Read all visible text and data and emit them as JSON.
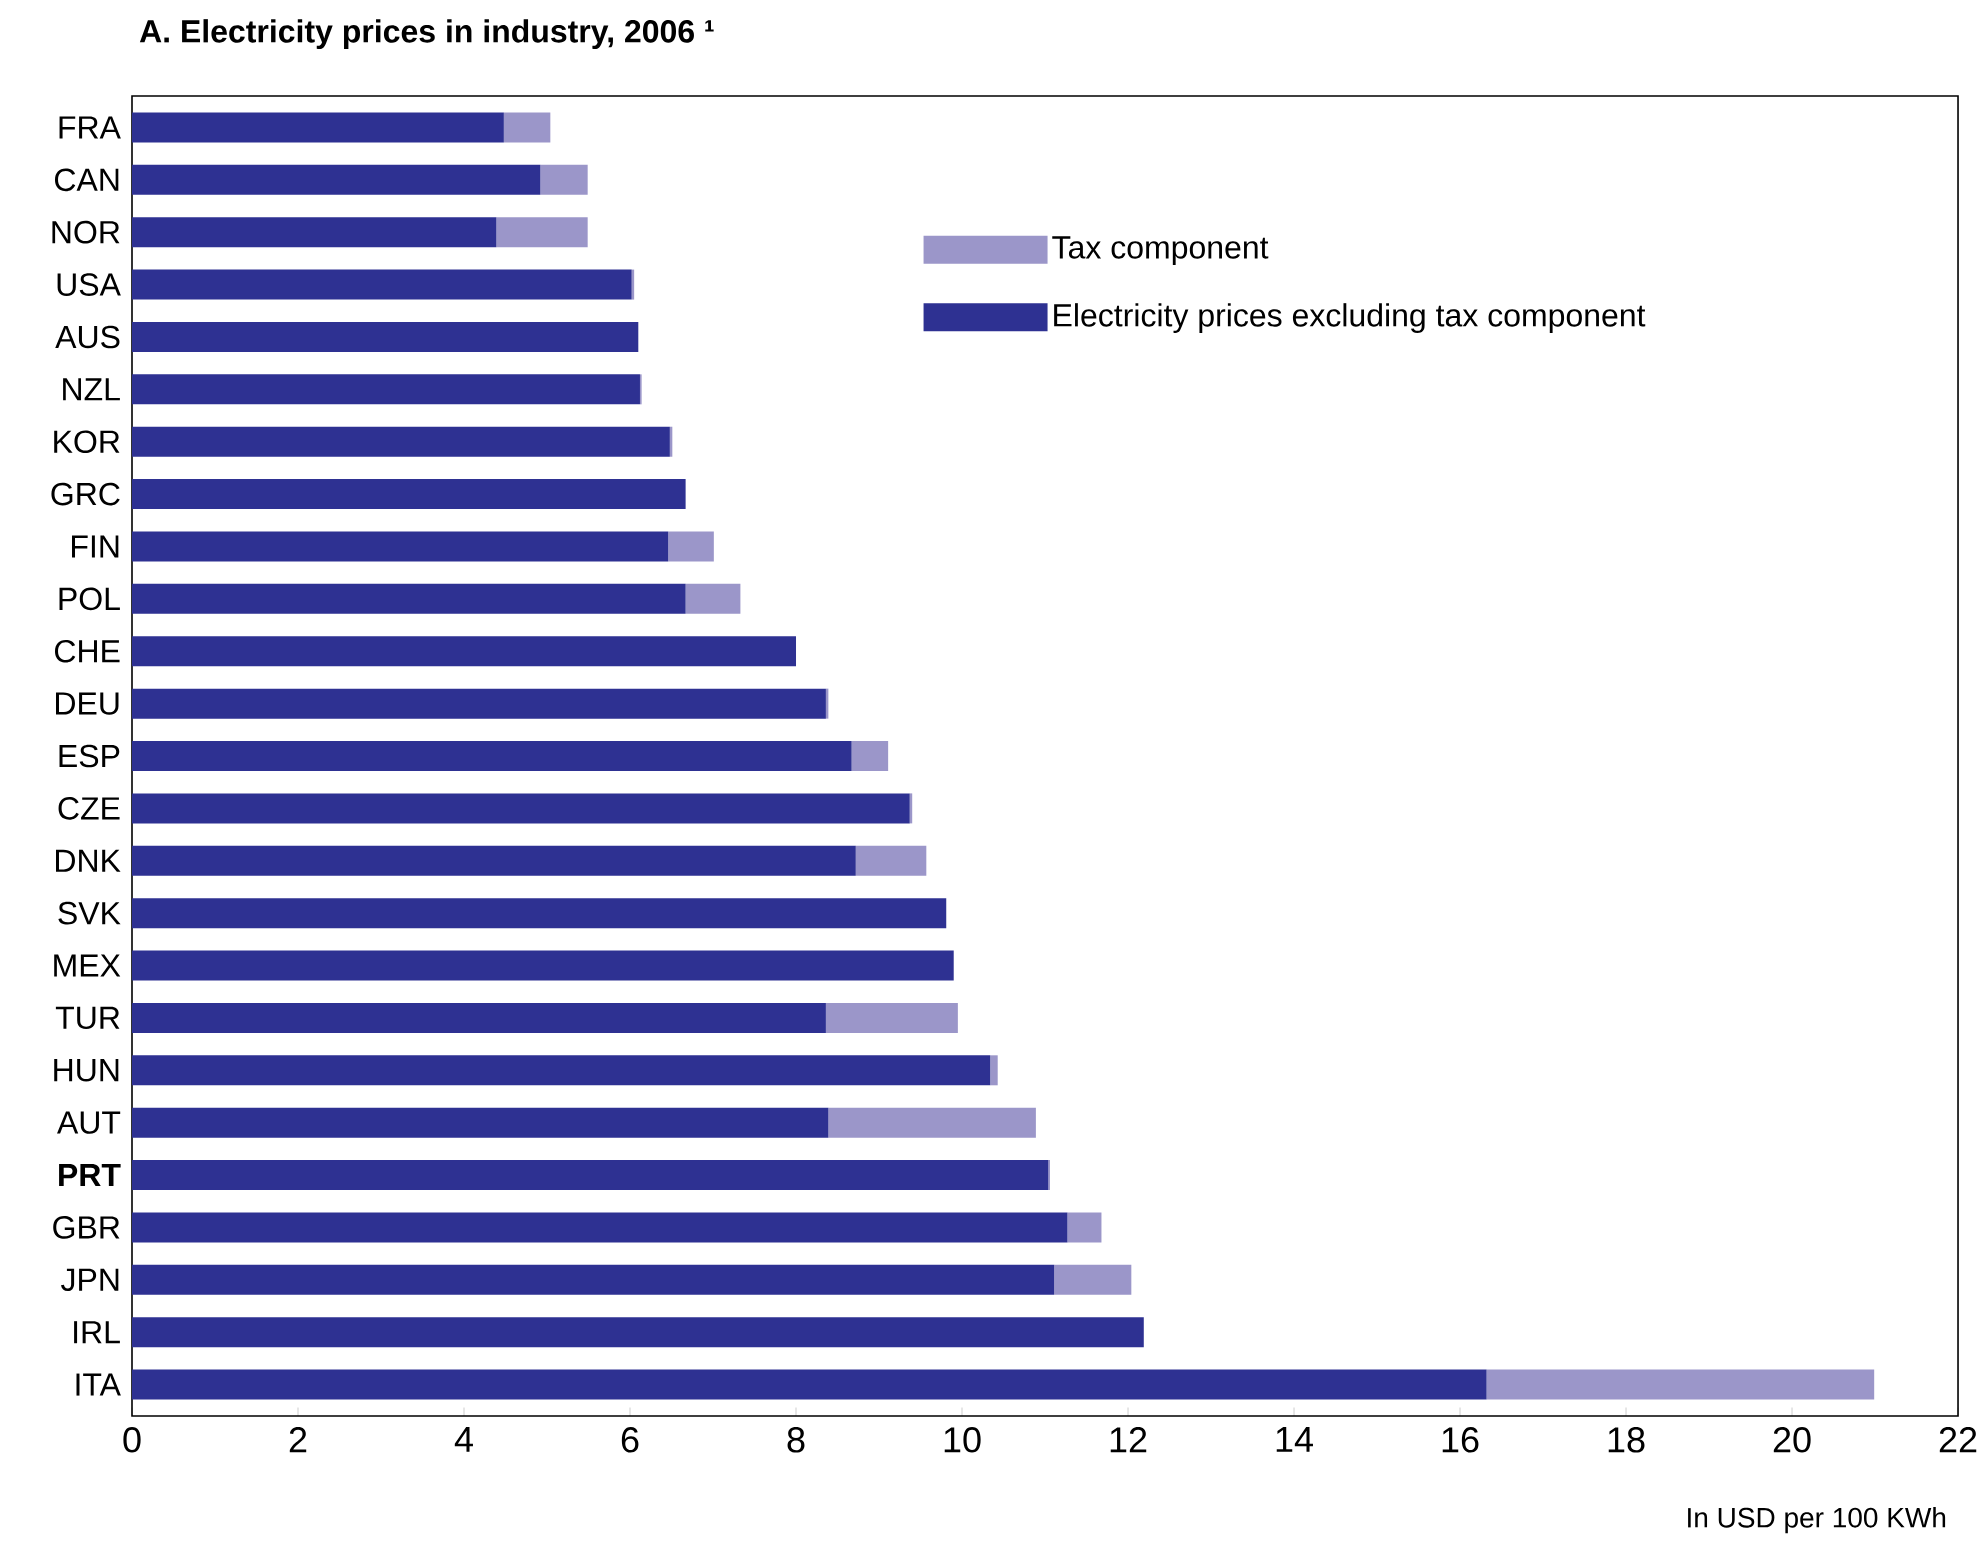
{
  "chart_data": {
    "type": "bar",
    "orientation": "horizontal",
    "stacked": true,
    "title": "A. Electricity prices in industry, 2006 ¹",
    "xlabel": "In USD per 100 KWh",
    "categories": [
      "FRA",
      "CAN",
      "NOR",
      "USA",
      "AUS",
      "NZL",
      "KOR",
      "GRC",
      "FIN",
      "POL",
      "CHE",
      "DEU",
      "ESP",
      "CZE",
      "DNK",
      "SVK",
      "MEX",
      "TUR",
      "HUN",
      "AUT",
      "**PRT**",
      "GBR",
      "JPN",
      "IRL",
      "ITA"
    ],
    "series": [
      {
        "name": "Electricity prices excluding tax component",
        "color": "#2e3192",
        "values": [
          4.48,
          4.92,
          4.39,
          6.02,
          6.1,
          6.12,
          6.48,
          6.67,
          6.46,
          6.67,
          8.0,
          8.36,
          8.67,
          9.37,
          8.72,
          9.81,
          9.9,
          8.36,
          10.34,
          8.39,
          11.04,
          11.27,
          11.11,
          12.19,
          16.32
        ]
      },
      {
        "name": "Tax component",
        "color": "#9b96c9",
        "values": [
          0.56,
          0.57,
          1.1,
          0.03,
          0,
          0.02,
          0.03,
          0,
          0.55,
          0.66,
          0,
          0.03,
          0.44,
          0.03,
          0.85,
          0,
          0,
          1.59,
          0.09,
          2.5,
          0.02,
          0.41,
          0.93,
          0,
          4.67
        ]
      }
    ],
    "xlim": [
      0,
      22
    ],
    "xticks": [
      0,
      2,
      4,
      6,
      8,
      10,
      12,
      14,
      16,
      18,
      20,
      22
    ],
    "grid": false,
    "legend": "top right"
  }
}
